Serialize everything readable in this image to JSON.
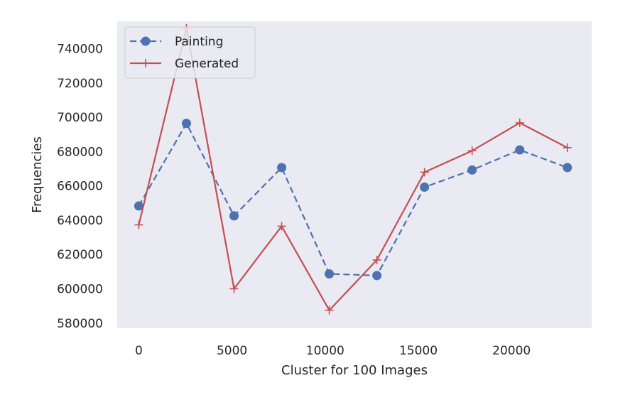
{
  "chart_data": {
    "type": "line",
    "title": "",
    "xlabel": "Cluster for 100 Images",
    "ylabel": "Frequencies",
    "xlim": [
      -1160,
      24300
    ],
    "ylim": [
      577000,
      756000
    ],
    "xticks": [
      0,
      5000,
      10000,
      15000,
      20000
    ],
    "yticks": [
      580000,
      600000,
      620000,
      640000,
      660000,
      680000,
      700000,
      720000,
      740000
    ],
    "grid": false,
    "legend_position": "upper left",
    "x": [
      0,
      2555,
      5110,
      7665,
      10220,
      12775,
      15330,
      17885,
      20440,
      22995
    ],
    "series": [
      {
        "name": "Painting",
        "values": [
          648300,
          696500,
          642500,
          670700,
          608700,
          607700,
          659300,
          669300,
          681000,
          670700
        ],
        "color": "#4c72b0",
        "line_style": "dashed",
        "marker": "circle"
      },
      {
        "name": "Generated",
        "values": [
          637300,
          752000,
          600000,
          636500,
          587500,
          616800,
          668000,
          680500,
          696800,
          682300
        ],
        "color": "#c44e52",
        "line_style": "solid",
        "marker": "plus"
      }
    ],
    "background": "#eaeaf2"
  }
}
